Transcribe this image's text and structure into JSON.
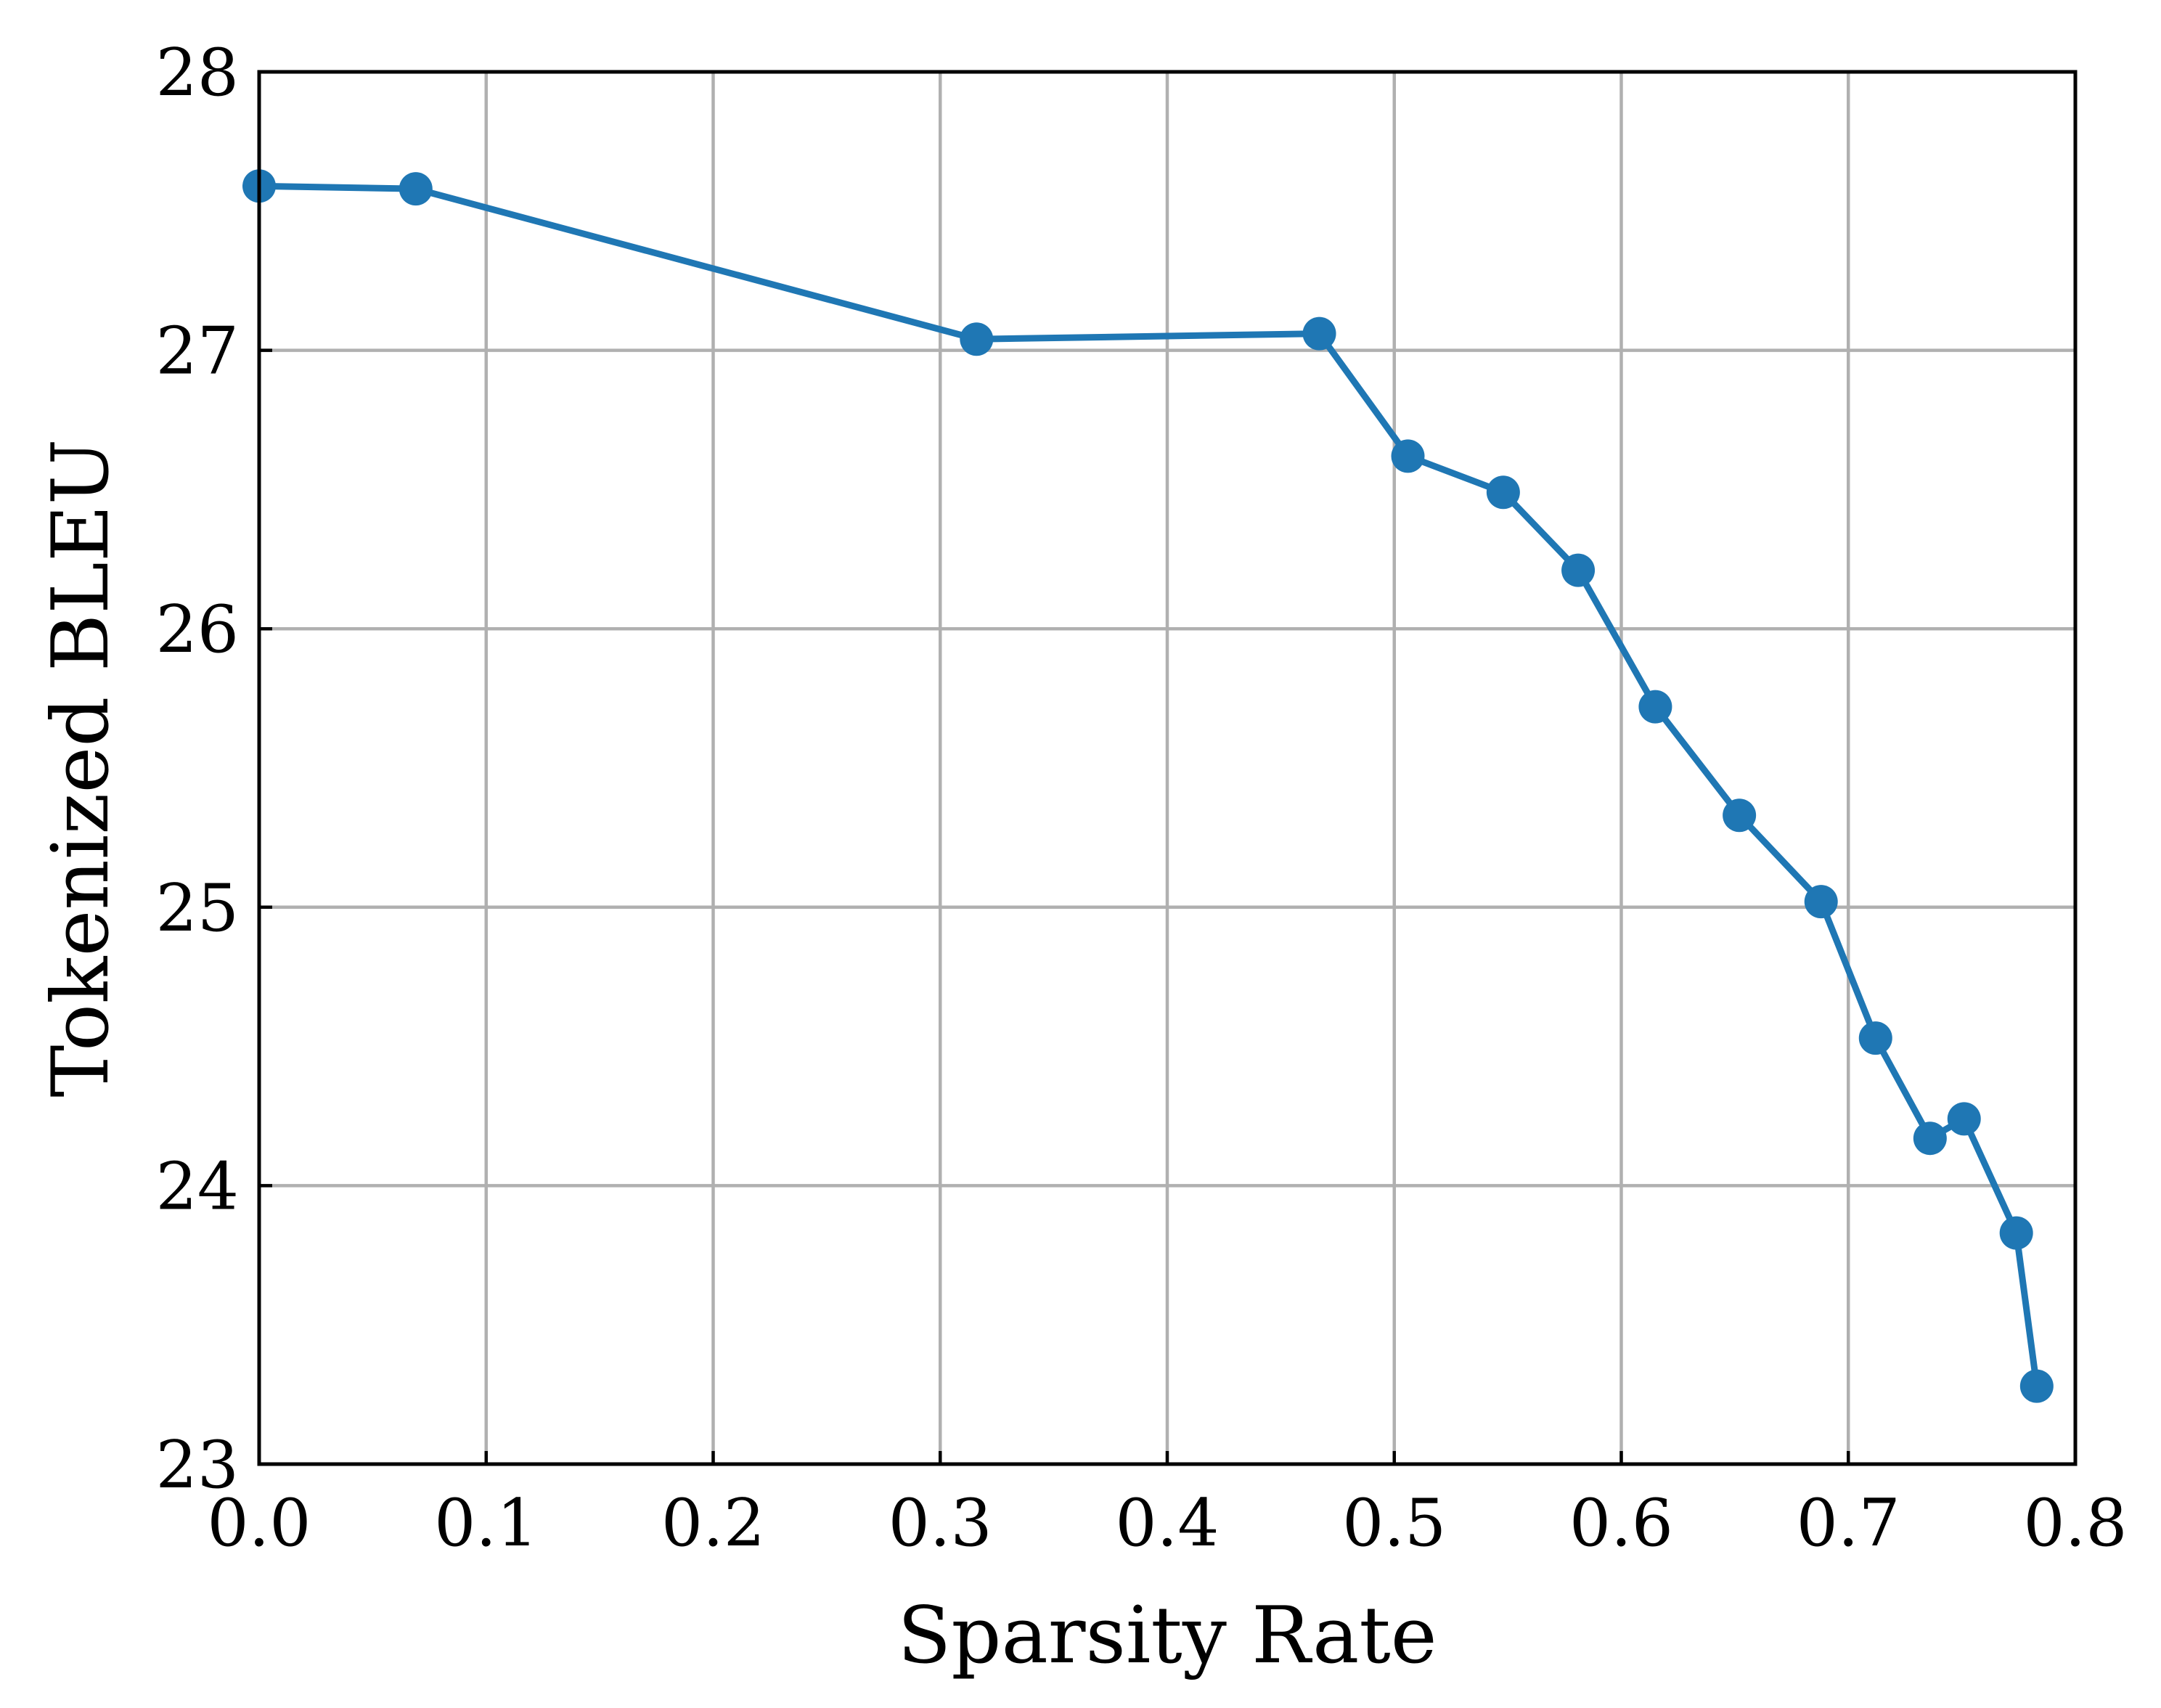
{
  "chart_data": {
    "type": "line",
    "xlabel": "Sparsity Rate",
    "ylabel": "Tokenized BLEU",
    "xlim": [
      0.0,
      0.8
    ],
    "ylim": [
      23,
      28
    ],
    "xticks": [
      "0.0",
      "0.1",
      "0.2",
      "0.3",
      "0.4",
      "0.5",
      "0.6",
      "0.7",
      "0.8"
    ],
    "yticks": [
      "23",
      "24",
      "25",
      "26",
      "27",
      "28"
    ],
    "grid": true,
    "series": [
      {
        "color": "#1f77b4",
        "marker": "circle",
        "x": [
          0.0,
          0.069,
          0.316,
          0.467,
          0.506,
          0.548,
          0.581,
          0.615,
          0.652,
          0.688,
          0.712,
          0.736,
          0.751,
          0.774,
          0.783
        ],
        "y": [
          27.59,
          27.58,
          27.04,
          27.06,
          26.62,
          26.49,
          26.21,
          25.72,
          25.33,
          25.02,
          24.53,
          24.17,
          24.24,
          23.83,
          23.28
        ]
      }
    ]
  }
}
